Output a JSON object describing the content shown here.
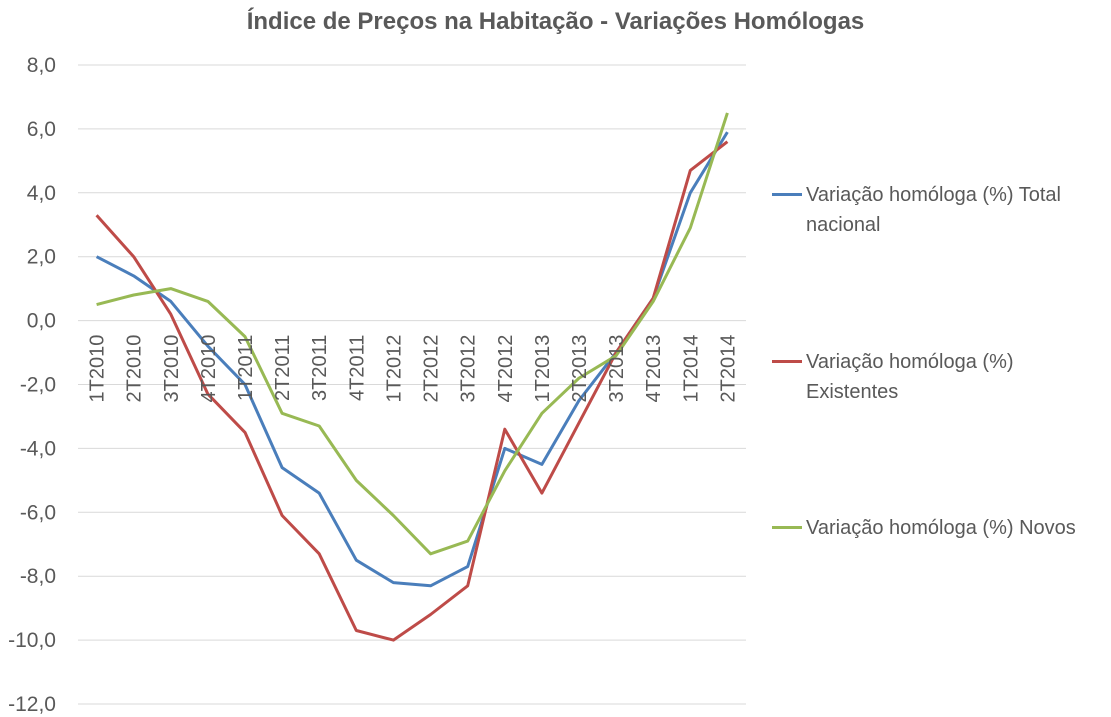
{
  "chart_data": {
    "type": "line",
    "title": "Índice de Preços na Habitação - Variações Homólogas",
    "categories": [
      "1T2010",
      "2T2010",
      "3T2010",
      "4T2010",
      "1T2011",
      "2T2011",
      "3T2011",
      "4T2011",
      "1T2012",
      "2T2012",
      "3T2012",
      "4T2012",
      "1T2013",
      "2T2013",
      "3T2013",
      "4T2013",
      "1T2014",
      "2T2014"
    ],
    "yticks": [
      "8,0",
      "6,0",
      "4,0",
      "2,0",
      "0,0",
      "-2,0",
      "-4,0",
      "-6,0",
      "-8,0",
      "-10,0",
      "-12,0"
    ],
    "ylim": [
      -12,
      8
    ],
    "grid": true,
    "legend_position": "right",
    "series": [
      {
        "name": "Variação homóloga (%) Total nacional",
        "color": "#4a7ebb",
        "values": [
          2.0,
          1.4,
          0.6,
          -0.8,
          -2.0,
          -4.6,
          -5.4,
          -7.5,
          -8.2,
          -8.3,
          -7.7,
          -4.0,
          -4.5,
          -2.5,
          -1.0,
          0.7,
          4.0,
          5.9
        ]
      },
      {
        "name": "Variação homóloga (%) Existentes",
        "color": "#be4b48",
        "values": [
          3.3,
          2.0,
          0.2,
          -2.3,
          -3.5,
          -6.1,
          -7.3,
          -9.7,
          -10.0,
          -9.2,
          -8.3,
          -3.4,
          -5.4,
          -3.2,
          -1.0,
          0.7,
          4.7,
          5.6
        ]
      },
      {
        "name": "Variação homóloga (%) Novos",
        "color": "#98b954",
        "values": [
          0.5,
          0.8,
          1.0,
          0.6,
          -0.5,
          -2.9,
          -3.3,
          -5.0,
          -6.1,
          -7.3,
          -6.9,
          -4.7,
          -2.9,
          -1.8,
          -1.1,
          0.6,
          2.9,
          6.5
        ]
      }
    ]
  }
}
